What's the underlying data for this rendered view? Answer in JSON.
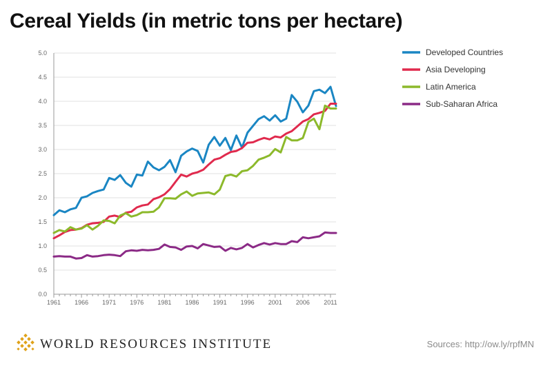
{
  "title": "Cereal Yields (in metric tons per hectare)",
  "org_name": "WORLD RESOURCES INSTITUTE",
  "source": "Sources: http://ow.ly/rpfMN",
  "chart_data": {
    "type": "line",
    "title": "Cereal Yields (in metric tons per hectare)",
    "xlabel": "",
    "ylabel": "",
    "xlim": [
      1961,
      2012
    ],
    "ylim": [
      0,
      5
    ],
    "grid": true,
    "legend_position": "right",
    "x_ticks": [
      "1961",
      "1966",
      "1971",
      "1976",
      "1981",
      "1986",
      "1991",
      "1996",
      "2001",
      "2006",
      "2011"
    ],
    "y_ticks": [
      "0.0",
      "0.5",
      "1.0",
      "1.5",
      "2.0",
      "2.5",
      "3.0",
      "3.5",
      "4.0",
      "4.5",
      "5.0"
    ],
    "x": [
      1961,
      1962,
      1963,
      1964,
      1965,
      1966,
      1967,
      1968,
      1969,
      1970,
      1971,
      1972,
      1973,
      1974,
      1975,
      1976,
      1977,
      1978,
      1979,
      1980,
      1981,
      1982,
      1983,
      1984,
      1985,
      1986,
      1987,
      1988,
      1989,
      1990,
      1991,
      1992,
      1993,
      1994,
      1995,
      1996,
      1997,
      1998,
      1999,
      2000,
      2001,
      2002,
      2003,
      2004,
      2005,
      2006,
      2007,
      2008,
      2009,
      2010,
      2011,
      2012
    ],
    "series": [
      {
        "name": "Developed Countries",
        "color": "#1a86c3",
        "values": [
          1.64,
          1.74,
          1.7,
          1.76,
          1.79,
          2.0,
          2.03,
          2.1,
          2.14,
          2.17,
          2.41,
          2.37,
          2.47,
          2.31,
          2.23,
          2.48,
          2.46,
          2.75,
          2.63,
          2.57,
          2.64,
          2.78,
          2.53,
          2.87,
          2.96,
          3.02,
          2.97,
          2.73,
          3.1,
          3.26,
          3.08,
          3.24,
          2.99,
          3.29,
          3.04,
          3.35,
          3.49,
          3.63,
          3.69,
          3.6,
          3.71,
          3.58,
          3.64,
          4.13,
          3.99,
          3.77,
          3.91,
          4.21,
          4.24,
          4.17,
          4.3,
          3.9
        ]
      },
      {
        "name": "Asia Developing",
        "color": "#e02a4d",
        "values": [
          1.16,
          1.22,
          1.29,
          1.33,
          1.34,
          1.37,
          1.44,
          1.47,
          1.48,
          1.5,
          1.61,
          1.63,
          1.6,
          1.69,
          1.71,
          1.8,
          1.84,
          1.86,
          1.97,
          2.01,
          2.07,
          2.18,
          2.33,
          2.48,
          2.44,
          2.5,
          2.53,
          2.58,
          2.69,
          2.79,
          2.82,
          2.89,
          2.95,
          2.97,
          3.03,
          3.14,
          3.15,
          3.2,
          3.24,
          3.21,
          3.27,
          3.25,
          3.33,
          3.38,
          3.48,
          3.58,
          3.63,
          3.73,
          3.76,
          3.8,
          3.95,
          3.95
        ]
      },
      {
        "name": "Latin America",
        "color": "#8cb92b",
        "values": [
          1.27,
          1.33,
          1.3,
          1.39,
          1.34,
          1.36,
          1.43,
          1.34,
          1.42,
          1.53,
          1.52,
          1.47,
          1.63,
          1.68,
          1.61,
          1.64,
          1.7,
          1.7,
          1.71,
          1.8,
          1.99,
          1.99,
          1.98,
          2.07,
          2.13,
          2.04,
          2.09,
          2.1,
          2.11,
          2.07,
          2.17,
          2.45,
          2.48,
          2.44,
          2.55,
          2.57,
          2.66,
          2.79,
          2.83,
          2.88,
          3.01,
          2.94,
          3.26,
          3.19,
          3.19,
          3.24,
          3.57,
          3.64,
          3.42,
          3.91,
          3.85,
          3.85
        ]
      },
      {
        "name": "Sub-Saharan Africa",
        "color": "#8b2a86",
        "values": [
          0.78,
          0.79,
          0.78,
          0.78,
          0.74,
          0.75,
          0.81,
          0.78,
          0.79,
          0.81,
          0.82,
          0.81,
          0.79,
          0.89,
          0.91,
          0.9,
          0.92,
          0.91,
          0.92,
          0.94,
          1.03,
          0.98,
          0.97,
          0.92,
          0.99,
          1.0,
          0.95,
          1.04,
          1.01,
          0.98,
          0.99,
          0.9,
          0.96,
          0.93,
          0.96,
          1.04,
          0.97,
          1.02,
          1.06,
          1.03,
          1.06,
          1.04,
          1.04,
          1.1,
          1.08,
          1.18,
          1.16,
          1.18,
          1.2,
          1.28,
          1.27,
          1.27
        ]
      }
    ]
  }
}
